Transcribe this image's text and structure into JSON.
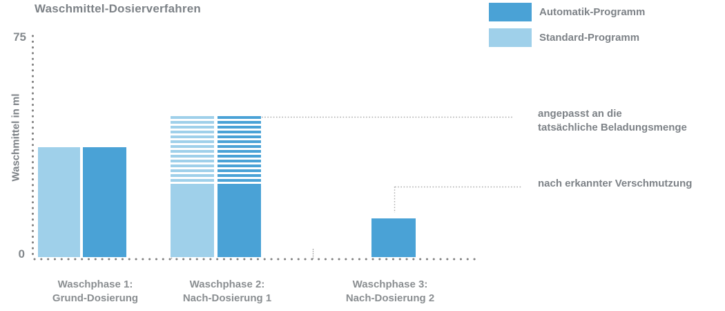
{
  "chart_data": {
    "type": "bar",
    "title": "Waschmittel-Dosierverfahren",
    "ylabel": "Waschmittel in ml",
    "ylim": [
      0,
      75
    ],
    "ytick_labels": {
      "max": "75",
      "min": "0"
    },
    "grid": false,
    "legend_position": "top-right",
    "legend": [
      {
        "label": "Automatik-Programm",
        "color": "#4aa2d6"
      },
      {
        "label": "Standard-Programm",
        "color": "#9fd0ea"
      }
    ],
    "categories": [
      {
        "line1": "Waschphase 1:",
        "line2": "Grund-Dosierung"
      },
      {
        "line1": "Waschphase 2:",
        "line2": "Nach-Dosierung 1"
      },
      {
        "line1": "Waschphase 3:",
        "line2": "Nach-Dosierung 2"
      }
    ],
    "series": [
      {
        "name": "Standard-Programm",
        "values": [
          37,
          24,
          null
        ],
        "variable_max": [
          null,
          47.5,
          null
        ]
      },
      {
        "name": "Automatik-Programm",
        "values": [
          37,
          24,
          13
        ],
        "variable_max": [
          null,
          47.5,
          null
        ]
      }
    ],
    "bars": [
      {
        "phase": 1,
        "program": "Standard-Programm",
        "value": 37,
        "striped_to": null
      },
      {
        "phase": 1,
        "program": "Automatik-Programm",
        "value": 37,
        "striped_to": null
      },
      {
        "phase": 2,
        "program": "Standard-Programm",
        "value": 24,
        "striped_to": 47.5
      },
      {
        "phase": 2,
        "program": "Automatik-Programm",
        "value": 24,
        "striped_to": 47.5
      },
      {
        "phase": 3,
        "program": "Automatik-Programm",
        "value": 13,
        "striped_to": null
      }
    ],
    "annotations": [
      {
        "line1": "angepasst an die",
        "line2": "tatsächliche Beladungsmenge"
      },
      {
        "line1": "nach erkannter Verschmutzung"
      }
    ],
    "colors": {
      "automatik": "#4aa2d6",
      "standard": "#9fd0ea",
      "text_gray": "#7d8287",
      "axis_dots": "#7f7f7f",
      "leader_dots": "#ababab"
    }
  }
}
